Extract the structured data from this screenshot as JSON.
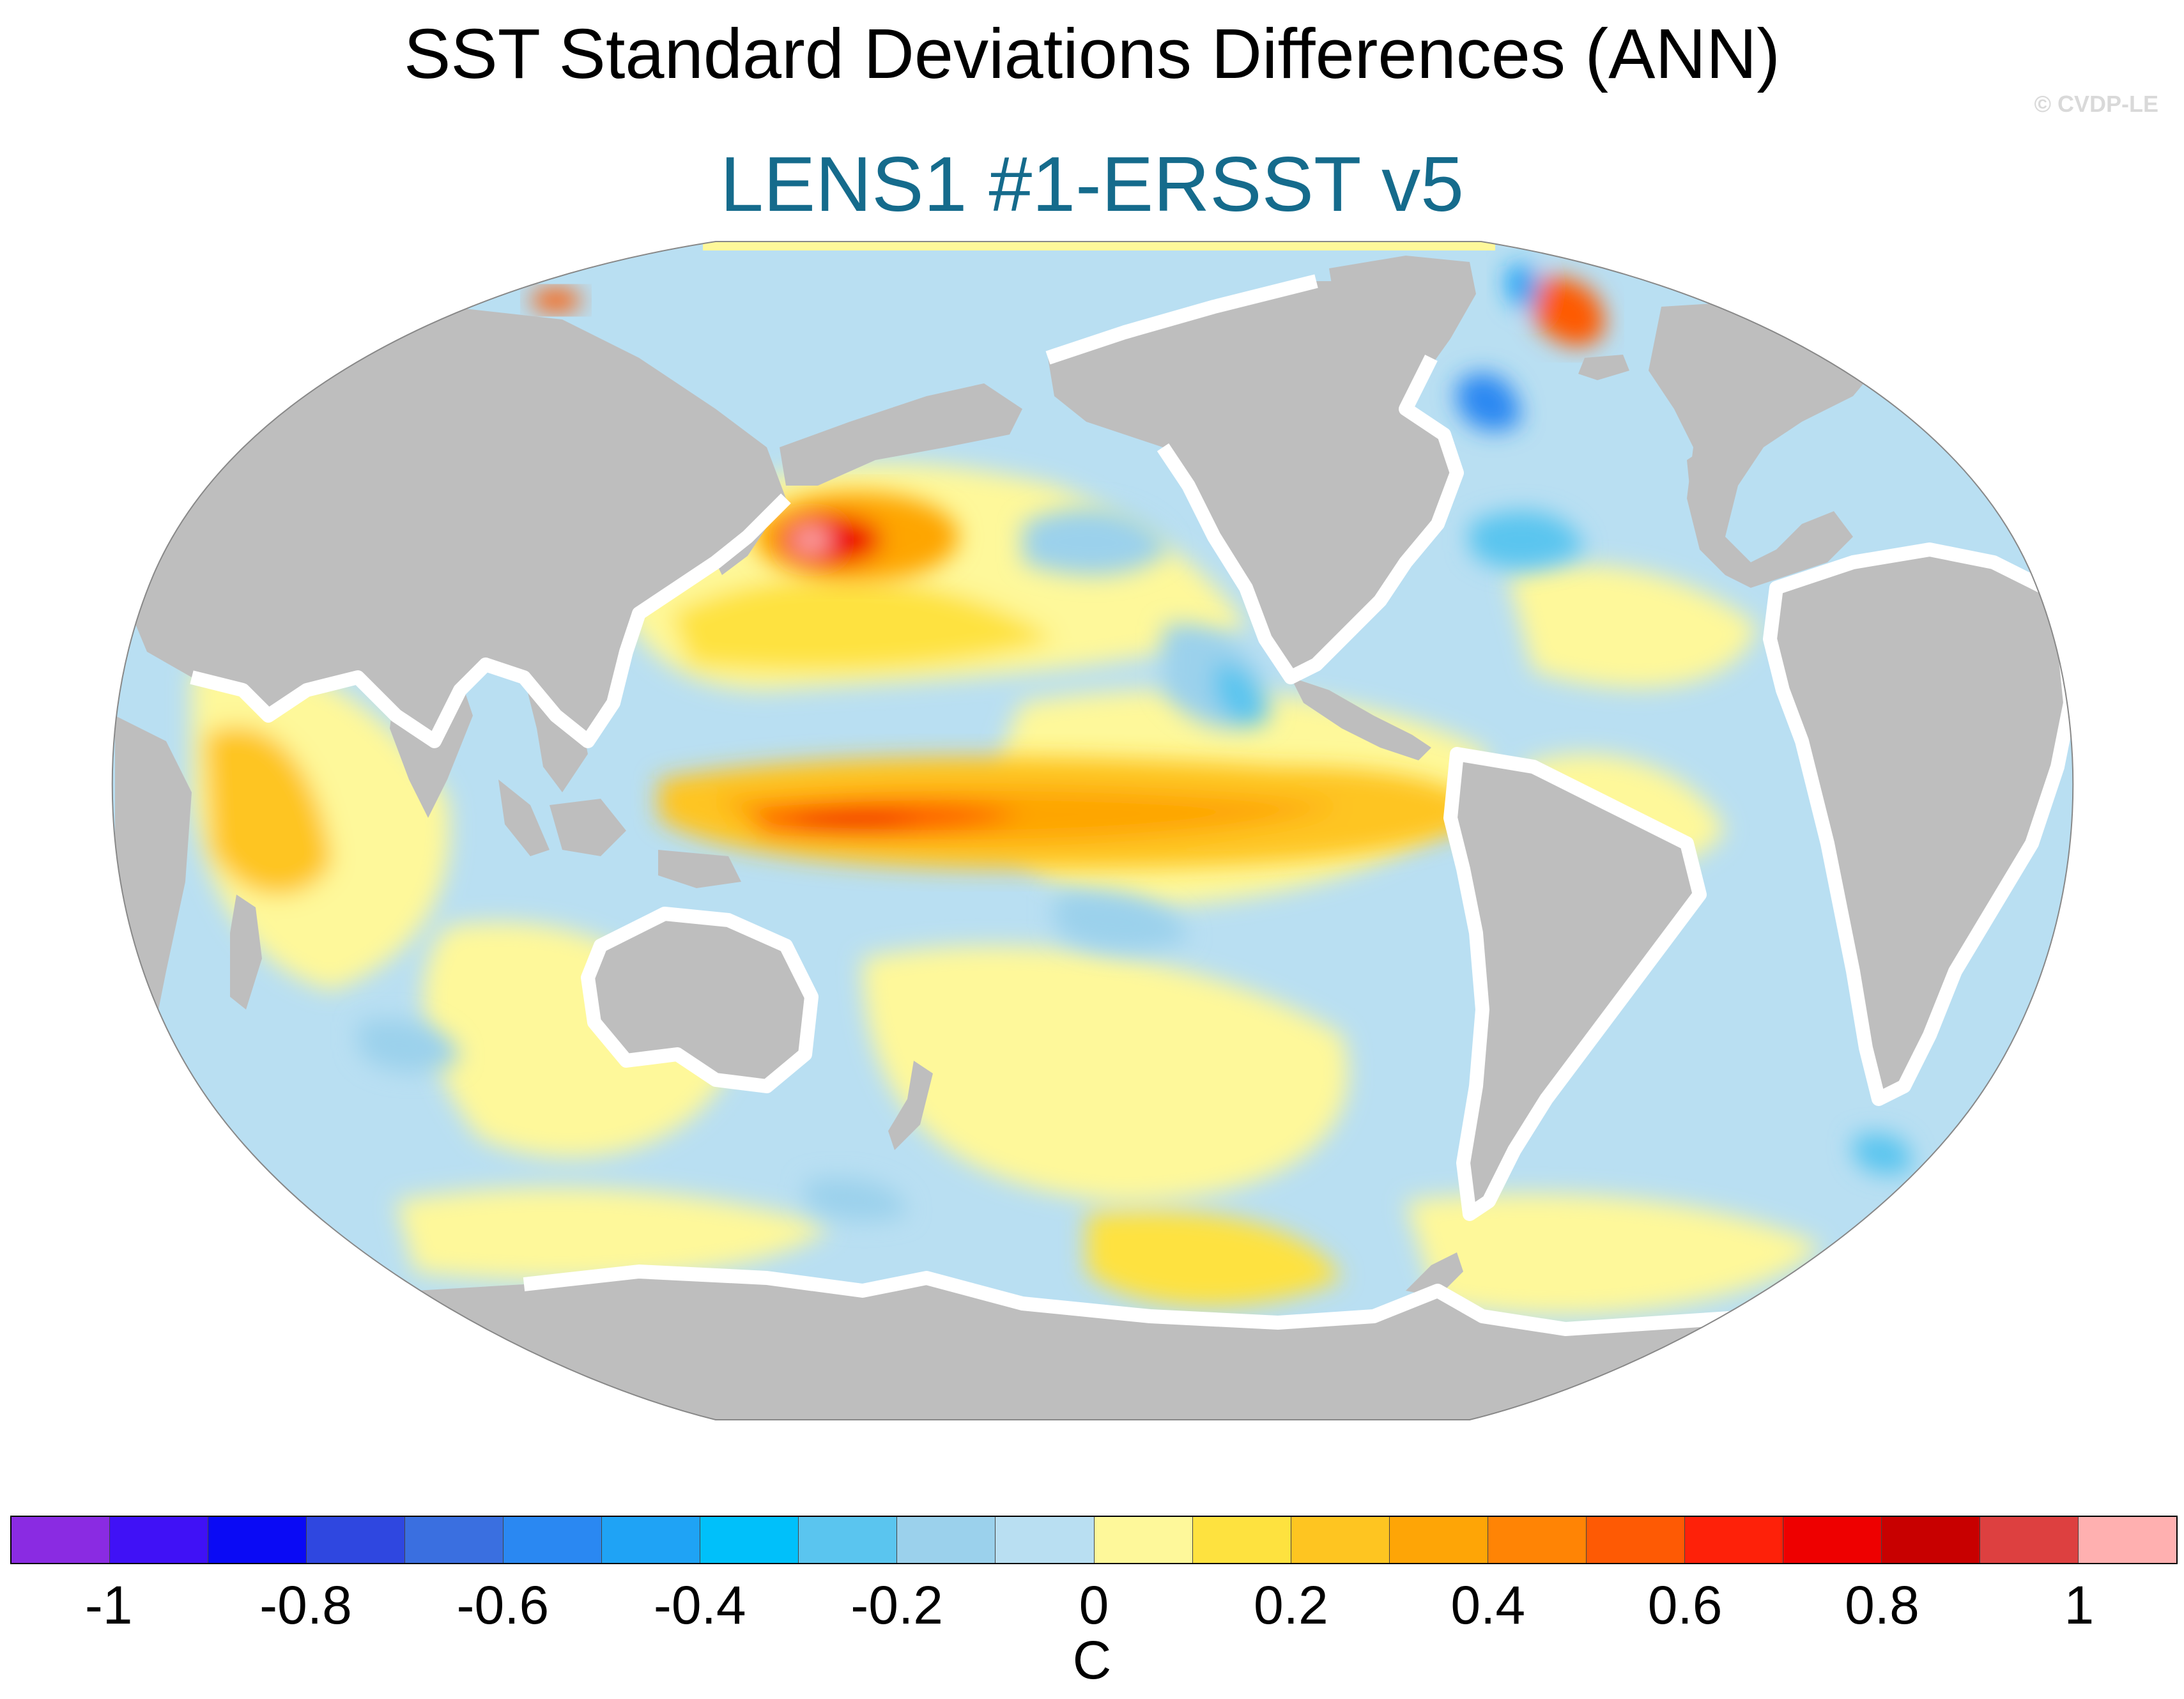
{
  "title": "SST Standard Deviations Differences (ANN)",
  "subtitle": "LENS1 #1-ERSST v5",
  "credit": "© CVDP-LE",
  "colors": {
    "subtitle": "#156b8c",
    "land": "#bebebe",
    "ocean_base": "#b9dff2",
    "missing": "#ffffff"
  },
  "colorbar": {
    "unit": "C",
    "colors": [
      "#8a2be2",
      "#4011f6",
      "#0a0af5",
      "#2f47e0",
      "#3a6fe0",
      "#2a88f2",
      "#1fa3f5",
      "#00c0fa",
      "#5ac5ef",
      "#9bd1ec",
      "#b9dff2",
      "#fef89a",
      "#fee23f",
      "#fec521",
      "#fea506",
      "#ff8405",
      "#fe5a04",
      "#fe2109",
      "#ee0000",
      "#c80000",
      "#dd4040",
      "#ffb0b0"
    ],
    "ticks": [
      "-1",
      "-0.8",
      "-0.6",
      "-0.4",
      "-0.2",
      "0",
      "0.2",
      "0.4",
      "0.6",
      "0.8",
      "1"
    ],
    "tick_values": [
      -1,
      -0.8,
      -0.6,
      -0.4,
      -0.2,
      0,
      0.2,
      0.4,
      0.6,
      0.8,
      1
    ],
    "range": [
      -1.1,
      1.1
    ]
  }
}
